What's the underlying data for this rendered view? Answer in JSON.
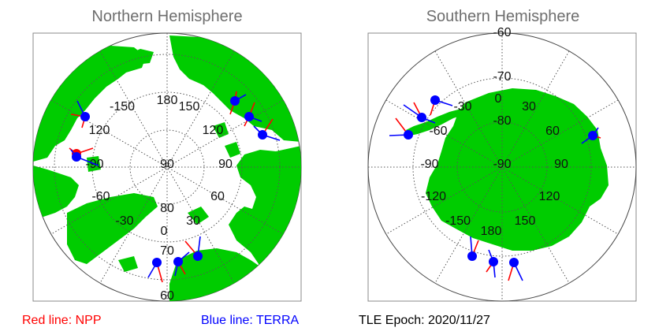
{
  "panels": {
    "north": {
      "title": "Northern Hemisphere",
      "labels": {
        "lon_180": "180",
        "lon_150w": "-150",
        "lon_150e": "150",
        "lon_120w": "120",
        "lon_120e": "120",
        "lon_90w": "-90",
        "lon_90c": "90",
        "lon_90e": "90",
        "lon_60w": "-60",
        "lon_60e": "60",
        "lon_30w": "-30",
        "lon_30e": "30",
        "lon_0": "0",
        "lat_80": "80",
        "lat_70": "70",
        "lat_60": "60"
      }
    },
    "south": {
      "title": "Southern Hemisphere",
      "labels": {
        "lat_m60": "-60",
        "lat_m70": "-70",
        "lat_m80": "-80",
        "lat_m90": "-90",
        "lon_0": "0",
        "lon_m30": "-30",
        "lon_30": "30",
        "lon_m60": "-60",
        "lon_60": "60",
        "lon_m90": "-90",
        "lon_90": "90",
        "lon_m120": "-120",
        "lon_120": "120",
        "lon_m150": "-150",
        "lon_150": "150",
        "lon_180": "180"
      }
    }
  },
  "legend": {
    "npp": "Red line: NPP",
    "terra": "Blue line: TERRA",
    "epoch": "TLE Epoch: 2020/11/27"
  },
  "colors": {
    "land": "#00cc00",
    "ocean": "#ffffff",
    "npp": "#ff0000",
    "terra": "#0000ff",
    "marker": "#0000ff",
    "frame": "#888888",
    "grid": "#555555"
  },
  "icons": [
    "satellite-marker-icon"
  ]
}
